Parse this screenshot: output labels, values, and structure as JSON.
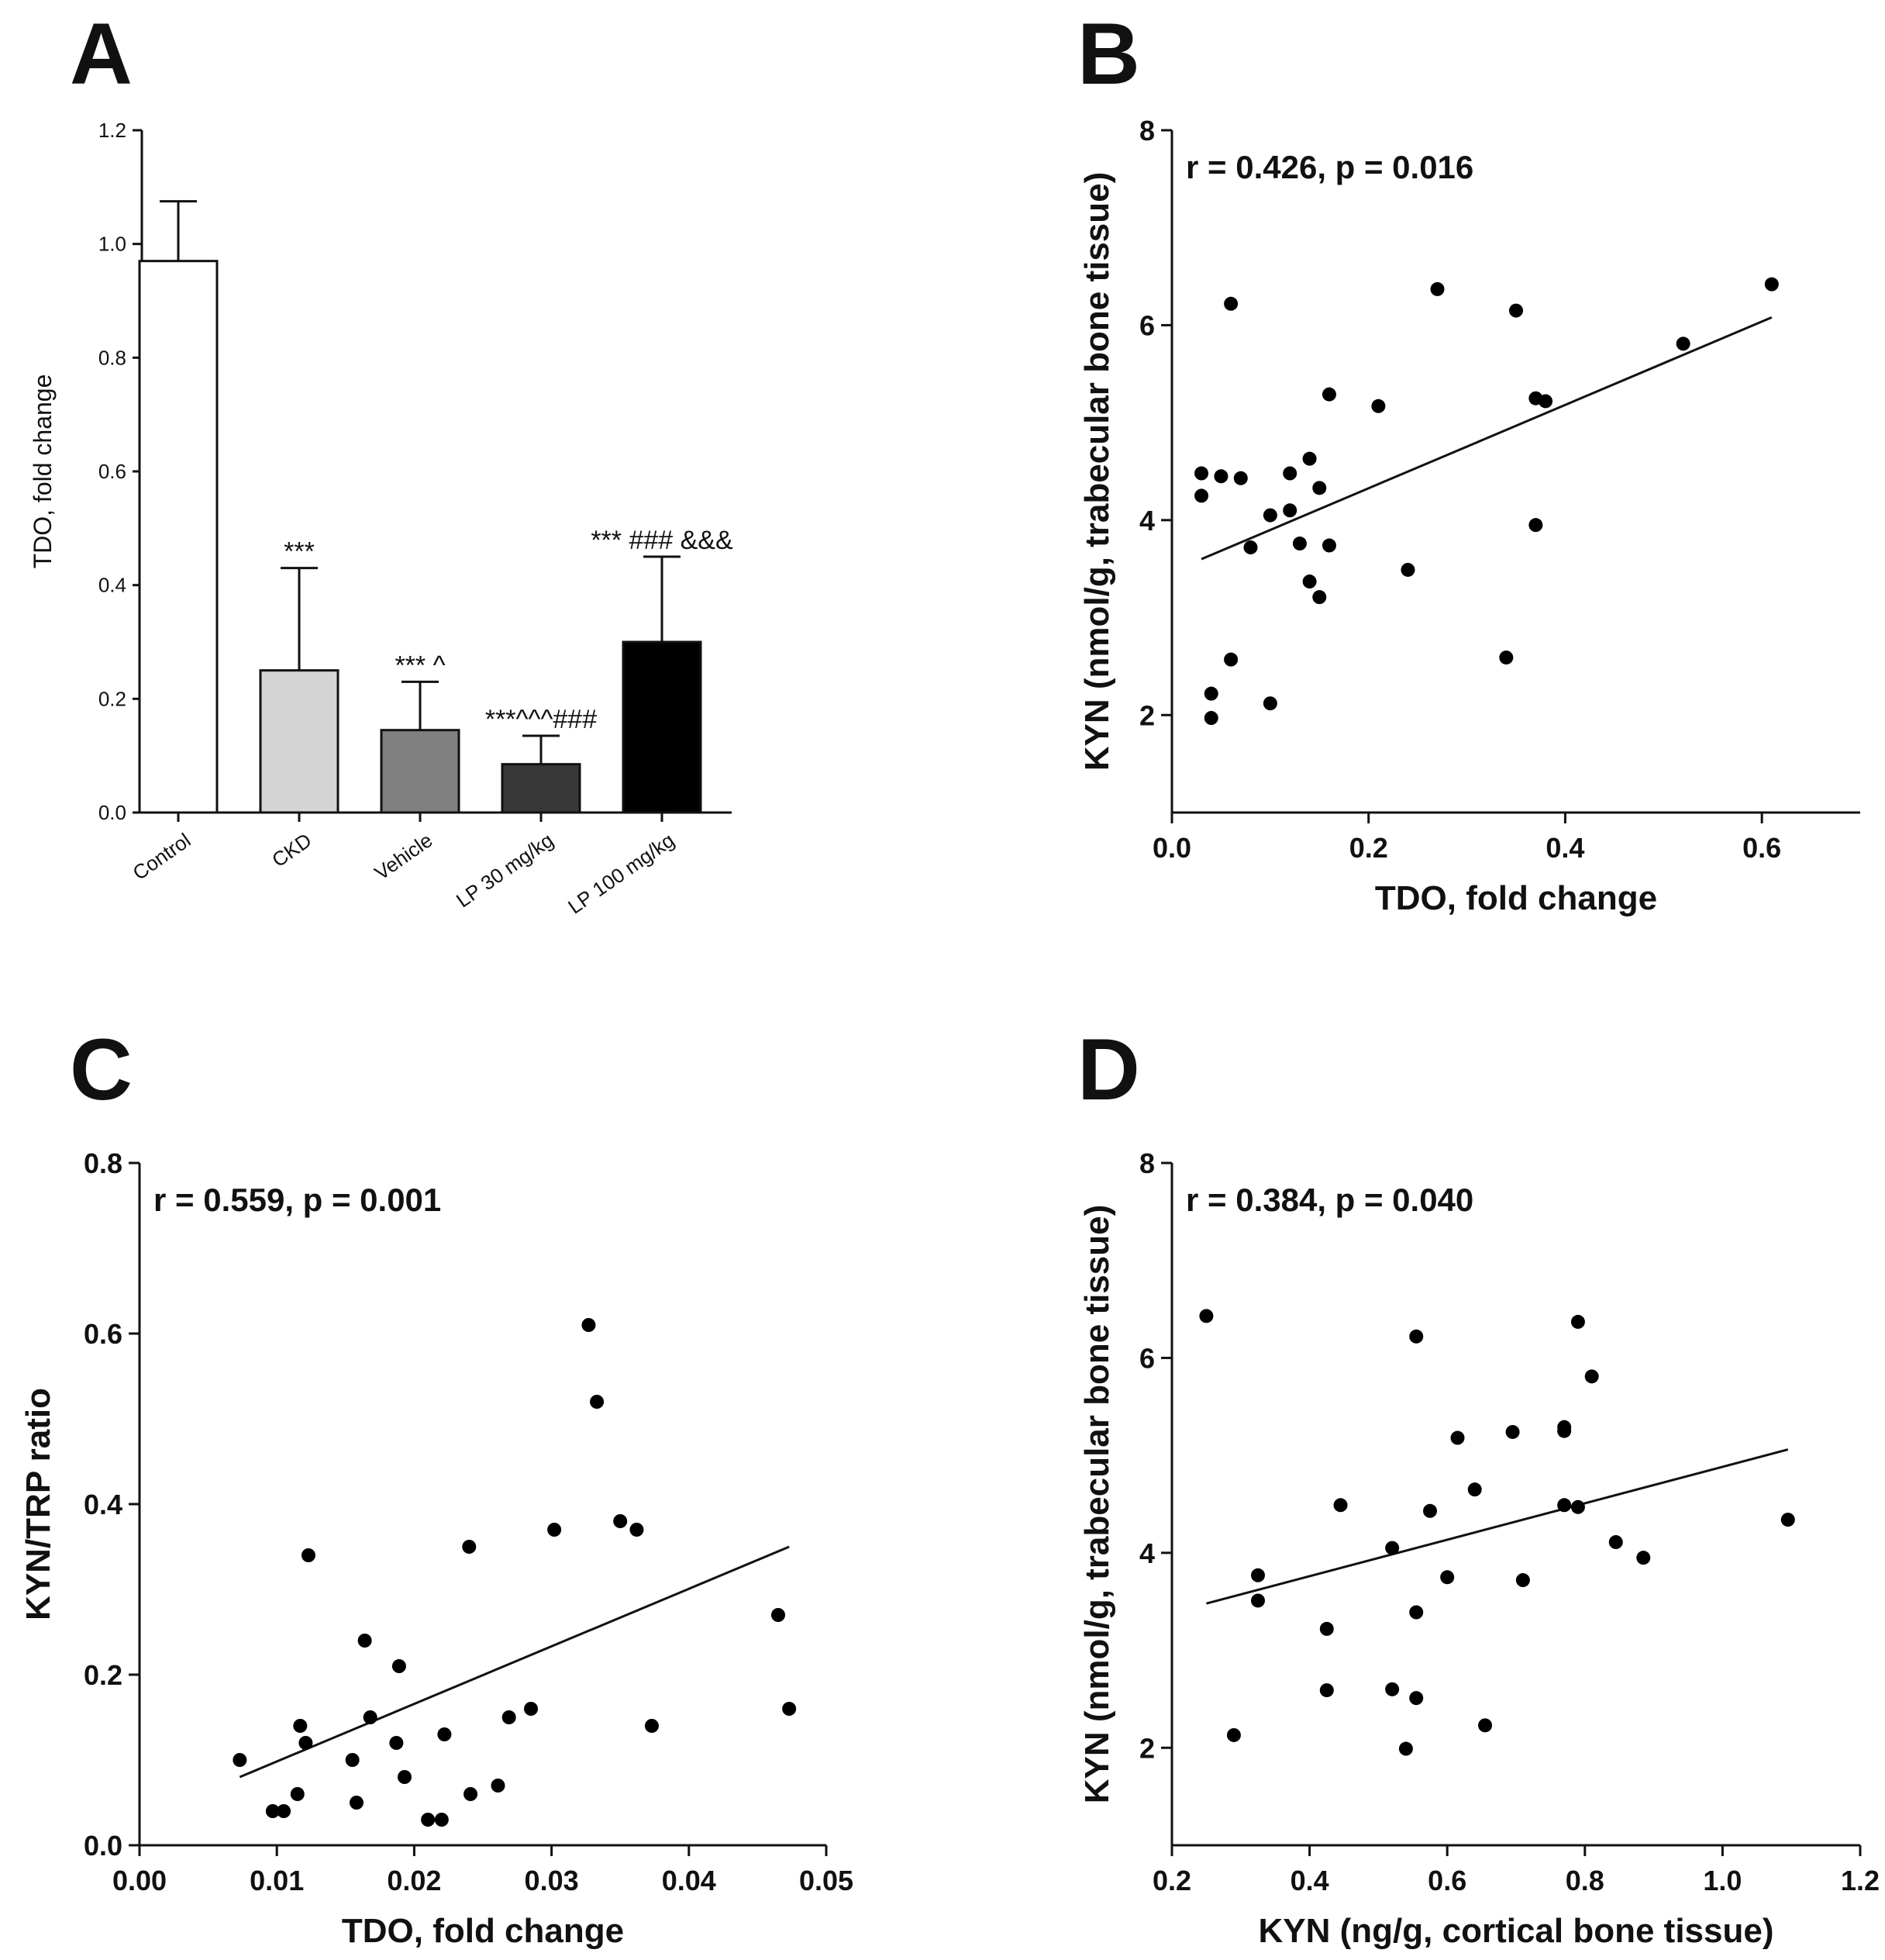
{
  "chart_data": [
    {
      "panel": "A",
      "type": "bar",
      "ylabel": "TDO, fold change",
      "ylim": [
        0,
        1.2
      ],
      "yticks": [
        "0.0",
        "0.2",
        "0.4",
        "0.6",
        "0.8",
        "1.0",
        "1.2"
      ],
      "categories": [
        "Control",
        "CKD",
        "Vehicle",
        "LP 30 mg/kg",
        "LP 100 mg/kg"
      ],
      "values": [
        0.97,
        0.25,
        0.145,
        0.085,
        0.3
      ],
      "errors": [
        0.105,
        0.18,
        0.085,
        0.05,
        0.15
      ],
      "bar_colors": [
        "#ffffff",
        "#d4d4d4",
        "#808080",
        "#383838",
        "#000000"
      ],
      "annotations": [
        "",
        "***",
        "*** ^",
        "***^^^###",
        "*** ### &&&"
      ]
    },
    {
      "panel": "B",
      "type": "scatter",
      "stat_text": "r = 0.426, p = 0.016",
      "xlabel": "TDO, fold change",
      "ylabel": "KYN (nmol/g, trabecular bone tissue)",
      "xlim": [
        0,
        0.7
      ],
      "ylim": [
        1,
        8
      ],
      "xticks": [
        "0.0",
        "0.2",
        "0.4",
        "0.6"
      ],
      "yticks": [
        "2",
        "4",
        "6",
        "8"
      ],
      "x": [
        0.03,
        0.03,
        0.05,
        0.07,
        0.06,
        0.04,
        0.04,
        0.06,
        0.08,
        0.1,
        0.1,
        0.12,
        0.12,
        0.13,
        0.14,
        0.14,
        0.15,
        0.15,
        0.16,
        0.16,
        0.21,
        0.24,
        0.27,
        0.34,
        0.35,
        0.37,
        0.37,
        0.38,
        0.52,
        0.61
      ],
      "y": [
        4.48,
        4.25,
        4.45,
        4.43,
        6.22,
        2.22,
        1.97,
        2.57,
        3.72,
        4.05,
        2.12,
        4.48,
        4.1,
        3.76,
        4.63,
        3.37,
        4.33,
        3.21,
        5.29,
        3.74,
        5.17,
        3.49,
        6.37,
        2.59,
        6.15,
        3.95,
        5.25,
        5.22,
        5.81,
        6.42
      ],
      "fit": {
        "x": [
          0.03,
          0.61
        ],
        "y": [
          3.6,
          6.08
        ]
      }
    },
    {
      "panel": "C",
      "type": "scatter",
      "stat_text": "r = 0.559, p = 0.001",
      "xlabel": "TDO, fold change",
      "ylabel": "KYN/TRP ratio",
      "xlim": [
        0,
        0.05
      ],
      "ylim": [
        0,
        0.8
      ],
      "xticks": [
        "0.00",
        "0.01",
        "0.02",
        "0.03",
        "0.04",
        "0.05"
      ],
      "yticks": [
        "0.0",
        "0.2",
        "0.4",
        "0.6",
        "0.8"
      ],
      "x": [
        0.0073,
        0.0097,
        0.0105,
        0.0115,
        0.0117,
        0.0121,
        0.0123,
        0.0155,
        0.0158,
        0.0164,
        0.0168,
        0.0187,
        0.0189,
        0.0193,
        0.021,
        0.022,
        0.0222,
        0.024,
        0.0241,
        0.0261,
        0.0269,
        0.0285,
        0.0302,
        0.0327,
        0.0333,
        0.035,
        0.0362,
        0.0373,
        0.0465,
        0.0473
      ],
      "y": [
        0.1,
        0.04,
        0.04,
        0.06,
        0.14,
        0.12,
        0.34,
        0.1,
        0.05,
        0.24,
        0.15,
        0.12,
        0.21,
        0.08,
        0.03,
        0.03,
        0.13,
        0.35,
        0.06,
        0.07,
        0.15,
        0.16,
        0.37,
        0.61,
        0.52,
        0.38,
        0.37,
        0.14,
        0.27,
        0.16
      ],
      "fit": {
        "x": [
          0.0073,
          0.0473
        ],
        "y": [
          0.08,
          0.35
        ]
      }
    },
    {
      "panel": "D",
      "type": "scatter",
      "stat_text": "r = 0.384, p = 0.040",
      "xlabel": "KYN (ng/g, cortical bone tissue)",
      "ylabel": "KYN (nmol/g, trabecular bone tissue)",
      "xlim": [
        0.2,
        1.2
      ],
      "ylim": [
        1,
        8
      ],
      "xticks": [
        "0.2",
        "0.4",
        "0.6",
        "0.8",
        "1.0",
        "1.2"
      ],
      "yticks": [
        "2",
        "4",
        "6",
        "8"
      ],
      "x": [
        0.25,
        0.29,
        0.325,
        0.325,
        0.425,
        0.425,
        0.445,
        0.52,
        0.52,
        0.54,
        0.555,
        0.555,
        0.555,
        0.575,
        0.6,
        0.615,
        0.64,
        0.655,
        0.695,
        0.71,
        0.77,
        0.77,
        0.77,
        0.79,
        0.79,
        0.81,
        0.845,
        0.885,
        1.095
      ],
      "y": [
        6.43,
        2.13,
        3.77,
        3.51,
        3.22,
        2.59,
        4.49,
        4.05,
        2.6,
        1.99,
        6.22,
        3.39,
        2.51,
        4.43,
        3.75,
        5.18,
        4.65,
        2.23,
        5.24,
        3.72,
        5.25,
        5.29,
        4.49,
        6.37,
        4.47,
        5.81,
        4.11,
        3.95,
        4.34
      ],
      "fit": {
        "x": [
          0.25,
          1.095
        ],
        "y": [
          3.48,
          5.06
        ]
      }
    }
  ]
}
